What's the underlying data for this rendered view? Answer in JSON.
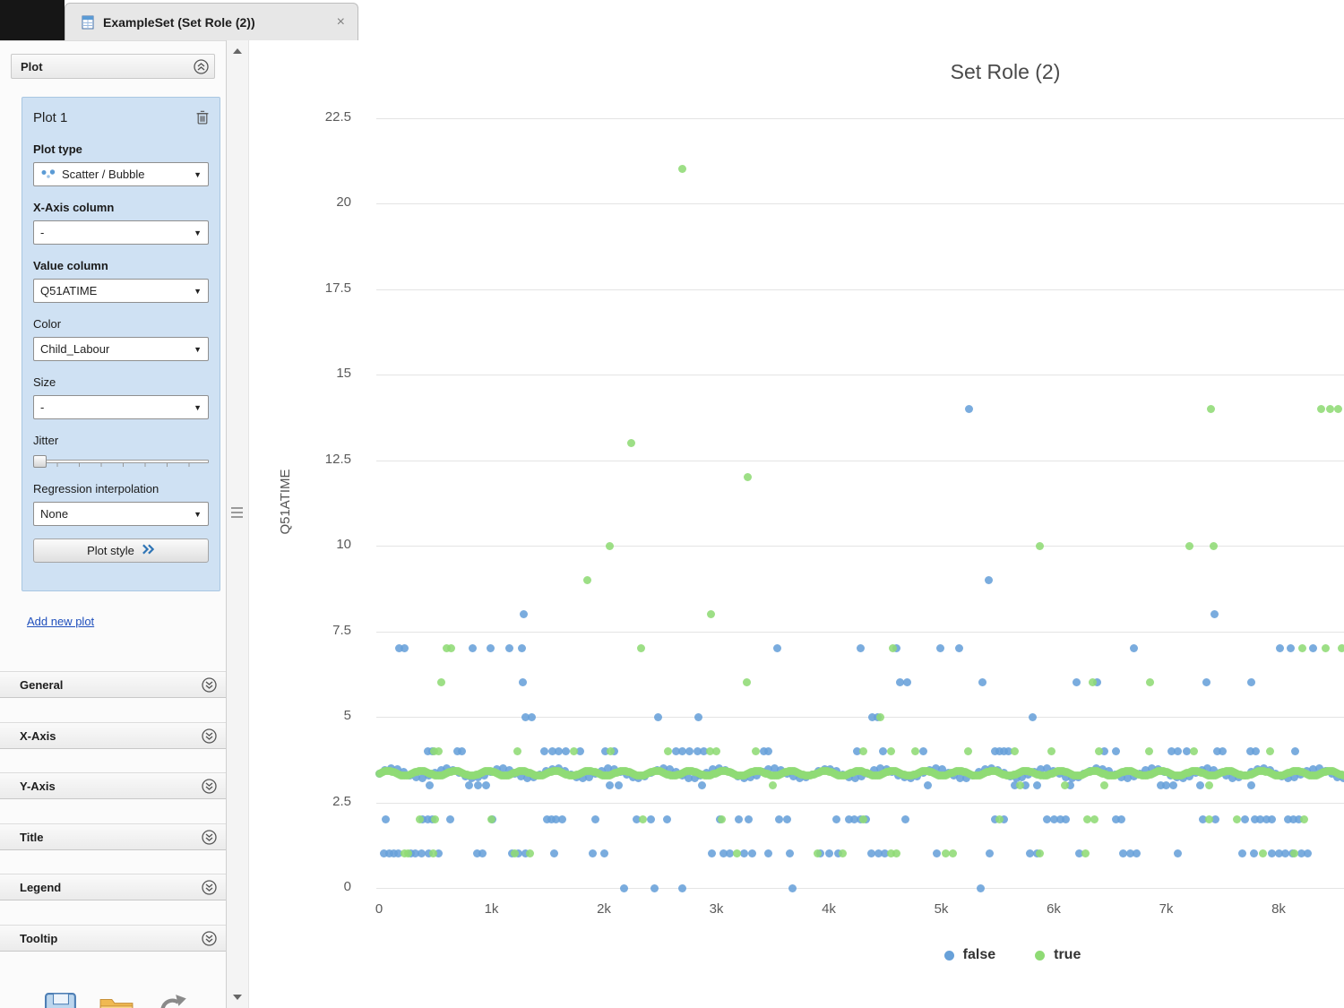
{
  "window": {
    "tab_title": "ExampleSet (Set Role (2))",
    "close_label": "×"
  },
  "sidebar": {
    "panel_title": "Plot",
    "plot_card": {
      "title": "Plot 1",
      "fields": [
        {
          "label": "Plot type",
          "value": "Scatter / Bubble",
          "bold": true,
          "icon": "scatter-plot-type-icon",
          "control": "dropdown"
        },
        {
          "label": "X-Axis column",
          "value": "-",
          "bold": true,
          "control": "dropdown"
        },
        {
          "label": "Value column",
          "value": "Q51ATIME",
          "bold": true,
          "control": "dropdown"
        },
        {
          "label": "Color",
          "value": "Child_Labour",
          "bold": false,
          "control": "dropdown"
        },
        {
          "label": "Size",
          "value": "-",
          "bold": false,
          "control": "dropdown"
        },
        {
          "label": "Jitter",
          "bold": false,
          "control": "slider"
        },
        {
          "label": "Regression interpolation",
          "value": "None",
          "bold": false,
          "control": "dropdown"
        }
      ],
      "plot_style_label": "Plot style"
    },
    "add_new_plot_label": "Add new plot",
    "sections": [
      "General",
      "X-Axis",
      "Y-Axis",
      "Title",
      "Legend",
      "Tooltip"
    ],
    "toolbar_icons": [
      "save-icon",
      "folder-open-icon",
      "refresh-icon"
    ]
  },
  "colors": {
    "false_point": "#68a1d9",
    "true_point": "#8fdb75",
    "link": "#1f4fbc",
    "plot_card_bg": "#cfe1f3"
  },
  "chart_data": {
    "type": "scatter",
    "title": "Set Role (2)",
    "xlabel": "",
    "ylabel": "Q51ATIME",
    "grid": "horizontal-only",
    "legend_position": "bottom-center",
    "x_ticks": [
      "0",
      "1k",
      "2k",
      "3k",
      "4k",
      "5k",
      "6k",
      "7k",
      "8k"
    ],
    "x_tick_values": [
      0,
      1000,
      2000,
      3000,
      4000,
      5000,
      6000,
      7000,
      8000
    ],
    "y_ticks": [
      0,
      2.5,
      5,
      7.5,
      10,
      12.5,
      15,
      17.5,
      20,
      22.5
    ],
    "y_tick_labels": [
      "0",
      "2.5",
      "5",
      "7.5",
      "10",
      "12.5",
      "15",
      "17.5",
      "20",
      "22.5"
    ],
    "xlim": [
      0,
      8600
    ],
    "ylim": [
      0,
      23.5
    ],
    "legend": [
      {
        "label": "false",
        "color": "#68a1d9"
      },
      {
        "label": "true",
        "color": "#8fdb75"
      }
    ],
    "dense_band": {
      "y": 3.35,
      "x_min": 0,
      "x_max": 8600,
      "green_step": 16,
      "blue_step": 55,
      "green_jitter": 0.07,
      "blue_jitter": 0.14
    },
    "series": [
      {
        "name": "false",
        "color": "#68a1d9",
        "points": [
          [
            5250,
            14
          ],
          [
            5420,
            9
          ],
          [
            1290,
            8
          ],
          [
            7430,
            8
          ],
          [
            180,
            7
          ],
          [
            230,
            7
          ],
          [
            830,
            7
          ],
          [
            990,
            7
          ],
          [
            1160,
            7
          ],
          [
            1270,
            7
          ],
          [
            3540,
            7
          ],
          [
            4280,
            7
          ],
          [
            4600,
            7
          ],
          [
            4990,
            7
          ],
          [
            5160,
            7
          ],
          [
            6710,
            7
          ],
          [
            8010,
            7
          ],
          [
            8110,
            7
          ],
          [
            8310,
            7
          ],
          [
            1280,
            6
          ],
          [
            4630,
            6
          ],
          [
            4700,
            6
          ],
          [
            5370,
            6
          ],
          [
            6200,
            6
          ],
          [
            6390,
            6
          ],
          [
            7360,
            6
          ],
          [
            7760,
            6
          ],
          [
            1300,
            5
          ],
          [
            1360,
            5
          ],
          [
            2480,
            5
          ],
          [
            2840,
            5
          ],
          [
            4390,
            5
          ],
          [
            4430,
            5
          ],
          [
            5810,
            5
          ],
          [
            430,
            4
          ],
          [
            470,
            4
          ],
          [
            700,
            4
          ],
          [
            740,
            4
          ],
          [
            1470,
            4
          ],
          [
            1540,
            4
          ],
          [
            1600,
            4
          ],
          [
            1660,
            4
          ],
          [
            1790,
            4
          ],
          [
            2010,
            4
          ],
          [
            2090,
            4
          ],
          [
            2640,
            4
          ],
          [
            2700,
            4
          ],
          [
            2760,
            4
          ],
          [
            2830,
            4
          ],
          [
            2890,
            4
          ],
          [
            3420,
            4
          ],
          [
            3460,
            4
          ],
          [
            4250,
            4
          ],
          [
            4480,
            4
          ],
          [
            4840,
            4
          ],
          [
            5480,
            4
          ],
          [
            5520,
            4
          ],
          [
            5560,
            4
          ],
          [
            5600,
            4
          ],
          [
            6450,
            4
          ],
          [
            6550,
            4
          ],
          [
            7050,
            4
          ],
          [
            7100,
            4
          ],
          [
            7180,
            4
          ],
          [
            7450,
            4
          ],
          [
            7500,
            4
          ],
          [
            7750,
            4
          ],
          [
            7800,
            4
          ],
          [
            8150,
            4
          ],
          [
            450,
            3
          ],
          [
            800,
            3
          ],
          [
            880,
            3
          ],
          [
            950,
            3
          ],
          [
            2050,
            3
          ],
          [
            2130,
            3
          ],
          [
            2870,
            3
          ],
          [
            4880,
            3
          ],
          [
            5650,
            3
          ],
          [
            5750,
            3
          ],
          [
            5850,
            3
          ],
          [
            6150,
            3
          ],
          [
            6950,
            3
          ],
          [
            7000,
            3
          ],
          [
            7060,
            3
          ],
          [
            7300,
            3
          ],
          [
            7760,
            3
          ],
          [
            60,
            2
          ],
          [
            390,
            2
          ],
          [
            430,
            2
          ],
          [
            470,
            2
          ],
          [
            630,
            2
          ],
          [
            1010,
            2
          ],
          [
            1490,
            2
          ],
          [
            1530,
            2
          ],
          [
            1570,
            2
          ],
          [
            1630,
            2
          ],
          [
            1920,
            2
          ],
          [
            2290,
            2
          ],
          [
            2420,
            2
          ],
          [
            2560,
            2
          ],
          [
            3030,
            2
          ],
          [
            3200,
            2
          ],
          [
            3290,
            2
          ],
          [
            3560,
            2
          ],
          [
            3630,
            2
          ],
          [
            4070,
            2
          ],
          [
            4180,
            2
          ],
          [
            4230,
            2
          ],
          [
            4280,
            2
          ],
          [
            4330,
            2
          ],
          [
            4680,
            2
          ],
          [
            5480,
            2
          ],
          [
            5560,
            2
          ],
          [
            5940,
            2
          ],
          [
            6000,
            2
          ],
          [
            6060,
            2
          ],
          [
            6110,
            2
          ],
          [
            6550,
            2
          ],
          [
            6600,
            2
          ],
          [
            7330,
            2
          ],
          [
            7440,
            2
          ],
          [
            7700,
            2
          ],
          [
            7790,
            2
          ],
          [
            7840,
            2
          ],
          [
            7890,
            2
          ],
          [
            7940,
            2
          ],
          [
            8080,
            2
          ],
          [
            8130,
            2
          ],
          [
            8180,
            2
          ],
          [
            40,
            1
          ],
          [
            90,
            1
          ],
          [
            130,
            1
          ],
          [
            170,
            1
          ],
          [
            280,
            1
          ],
          [
            320,
            1
          ],
          [
            380,
            1
          ],
          [
            440,
            1
          ],
          [
            530,
            1
          ],
          [
            870,
            1
          ],
          [
            920,
            1
          ],
          [
            1180,
            1
          ],
          [
            1240,
            1
          ],
          [
            1300,
            1
          ],
          [
            1560,
            1
          ],
          [
            1900,
            1
          ],
          [
            2000,
            1
          ],
          [
            2960,
            1
          ],
          [
            3060,
            1
          ],
          [
            3120,
            1
          ],
          [
            3250,
            1
          ],
          [
            3320,
            1
          ],
          [
            3460,
            1
          ],
          [
            3650,
            1
          ],
          [
            3920,
            1
          ],
          [
            4000,
            1
          ],
          [
            4080,
            1
          ],
          [
            4380,
            1
          ],
          [
            4440,
            1
          ],
          [
            4500,
            1
          ],
          [
            4960,
            1
          ],
          [
            5430,
            1
          ],
          [
            5790,
            1
          ],
          [
            5850,
            1
          ],
          [
            6230,
            1
          ],
          [
            6620,
            1
          ],
          [
            6680,
            1
          ],
          [
            6740,
            1
          ],
          [
            7100,
            1
          ],
          [
            7680,
            1
          ],
          [
            7780,
            1
          ],
          [
            7940,
            1
          ],
          [
            8000,
            1
          ],
          [
            8060,
            1
          ],
          [
            8120,
            1
          ],
          [
            8200,
            1
          ],
          [
            8260,
            1
          ],
          [
            2180,
            0
          ],
          [
            2450,
            0
          ],
          [
            2700,
            0
          ],
          [
            3680,
            0
          ],
          [
            5350,
            0
          ]
        ]
      },
      {
        "name": "true",
        "color": "#8fdb75",
        "points": [
          [
            2700,
            21
          ],
          [
            7400,
            14
          ],
          [
            8380,
            14
          ],
          [
            8460,
            14
          ],
          [
            8530,
            14
          ],
          [
            2240,
            13
          ],
          [
            3280,
            12
          ],
          [
            2050,
            10
          ],
          [
            5880,
            10
          ],
          [
            7210,
            10
          ],
          [
            7420,
            10
          ],
          [
            1850,
            9
          ],
          [
            2950,
            8
          ],
          [
            600,
            7
          ],
          [
            640,
            7
          ],
          [
            2330,
            7
          ],
          [
            4570,
            7
          ],
          [
            8210,
            7
          ],
          [
            8420,
            7
          ],
          [
            8560,
            7
          ],
          [
            550,
            6
          ],
          [
            3270,
            6
          ],
          [
            6350,
            6
          ],
          [
            6860,
            6
          ],
          [
            4460,
            5
          ],
          [
            490,
            4
          ],
          [
            530,
            4
          ],
          [
            1230,
            4
          ],
          [
            1730,
            4
          ],
          [
            2060,
            4
          ],
          [
            2570,
            4
          ],
          [
            2940,
            4
          ],
          [
            3000,
            4
          ],
          [
            3350,
            4
          ],
          [
            4310,
            4
          ],
          [
            4550,
            4
          ],
          [
            4770,
            4
          ],
          [
            5240,
            4
          ],
          [
            5650,
            4
          ],
          [
            5980,
            4
          ],
          [
            6400,
            4
          ],
          [
            6850,
            4
          ],
          [
            7250,
            4
          ],
          [
            7920,
            4
          ],
          [
            3500,
            3
          ],
          [
            5700,
            3
          ],
          [
            6100,
            3
          ],
          [
            6450,
            3
          ],
          [
            7380,
            3
          ],
          [
            360,
            2
          ],
          [
            500,
            2
          ],
          [
            1000,
            2
          ],
          [
            2350,
            2
          ],
          [
            3050,
            2
          ],
          [
            4310,
            2
          ],
          [
            5520,
            2
          ],
          [
            6300,
            2
          ],
          [
            6360,
            2
          ],
          [
            7380,
            2
          ],
          [
            7630,
            2
          ],
          [
            8230,
            2
          ],
          [
            230,
            1
          ],
          [
            260,
            1
          ],
          [
            480,
            1
          ],
          [
            1210,
            1
          ],
          [
            1340,
            1
          ],
          [
            3180,
            1
          ],
          [
            3900,
            1
          ],
          [
            4120,
            1
          ],
          [
            4550,
            1
          ],
          [
            4600,
            1
          ],
          [
            5040,
            1
          ],
          [
            5100,
            1
          ],
          [
            5880,
            1
          ],
          [
            6280,
            1
          ],
          [
            7860,
            1
          ],
          [
            8140,
            1
          ]
        ]
      }
    ]
  }
}
